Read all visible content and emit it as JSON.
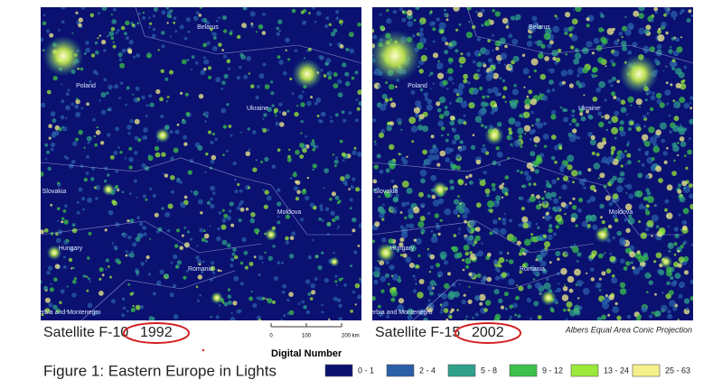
{
  "maps": [
    {
      "caption": "Satellite F-10",
      "year": "1992",
      "labels": [
        "Belarus",
        "Poland",
        "Ukraine",
        "Slovakia",
        "Moldova",
        "Hungary",
        "Romania",
        "Serbia and Montenegro"
      ]
    },
    {
      "caption": "Satellite F-15",
      "year": "2002",
      "labels": [
        "Belarus",
        "Poland",
        "Ukraine",
        "Slovakia",
        "Moldova",
        "Hungary",
        "Romania",
        "Serbia and Montenegro"
      ]
    }
  ],
  "scale_bar": [
    "0",
    "100",
    "200 km"
  ],
  "projection": "Albers Equal Area Conic Projection",
  "figure_caption": "Figure 1: Eastern Europe in Lights",
  "legend": {
    "title": "Digital Number",
    "items": [
      {
        "label": "0 - 1",
        "color": "#0b1170"
      },
      {
        "label": "2 - 4",
        "color": "#2a5fa8"
      },
      {
        "label": "5 - 8",
        "color": "#2fa08a"
      },
      {
        "label": "9 - 12",
        "color": "#3cc24a"
      },
      {
        "label": "13 - 24",
        "color": "#9bea3a"
      },
      {
        "label": "25 - 63",
        "color": "#f5f08a"
      }
    ]
  }
}
